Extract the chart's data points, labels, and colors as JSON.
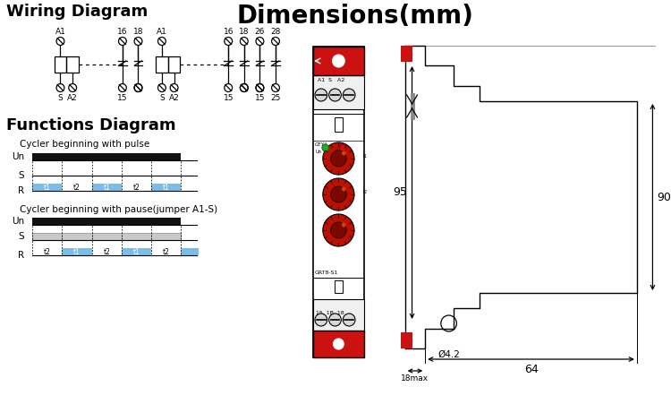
{
  "title_wiring": "Wiring Diagram",
  "title_dims": "Dimensions(mm)",
  "title_funcs": "Functions Diagram",
  "bg_color": "#ffffff",
  "cycle1_title": "Cycler beginning with pulse",
  "cycle2_title": "Cycler beginning with pause(jumper A1-S)",
  "blue_color": "#7abde8",
  "gray_color": "#c8c8c8",
  "black_color": "#111111",
  "red_color": "#cc1111",
  "green_color": "#22aa22",
  "dim_95": "95",
  "dim_90": "90",
  "dim_64": "64",
  "dim_18max": "18max",
  "dim_phi": "Ø4.2"
}
